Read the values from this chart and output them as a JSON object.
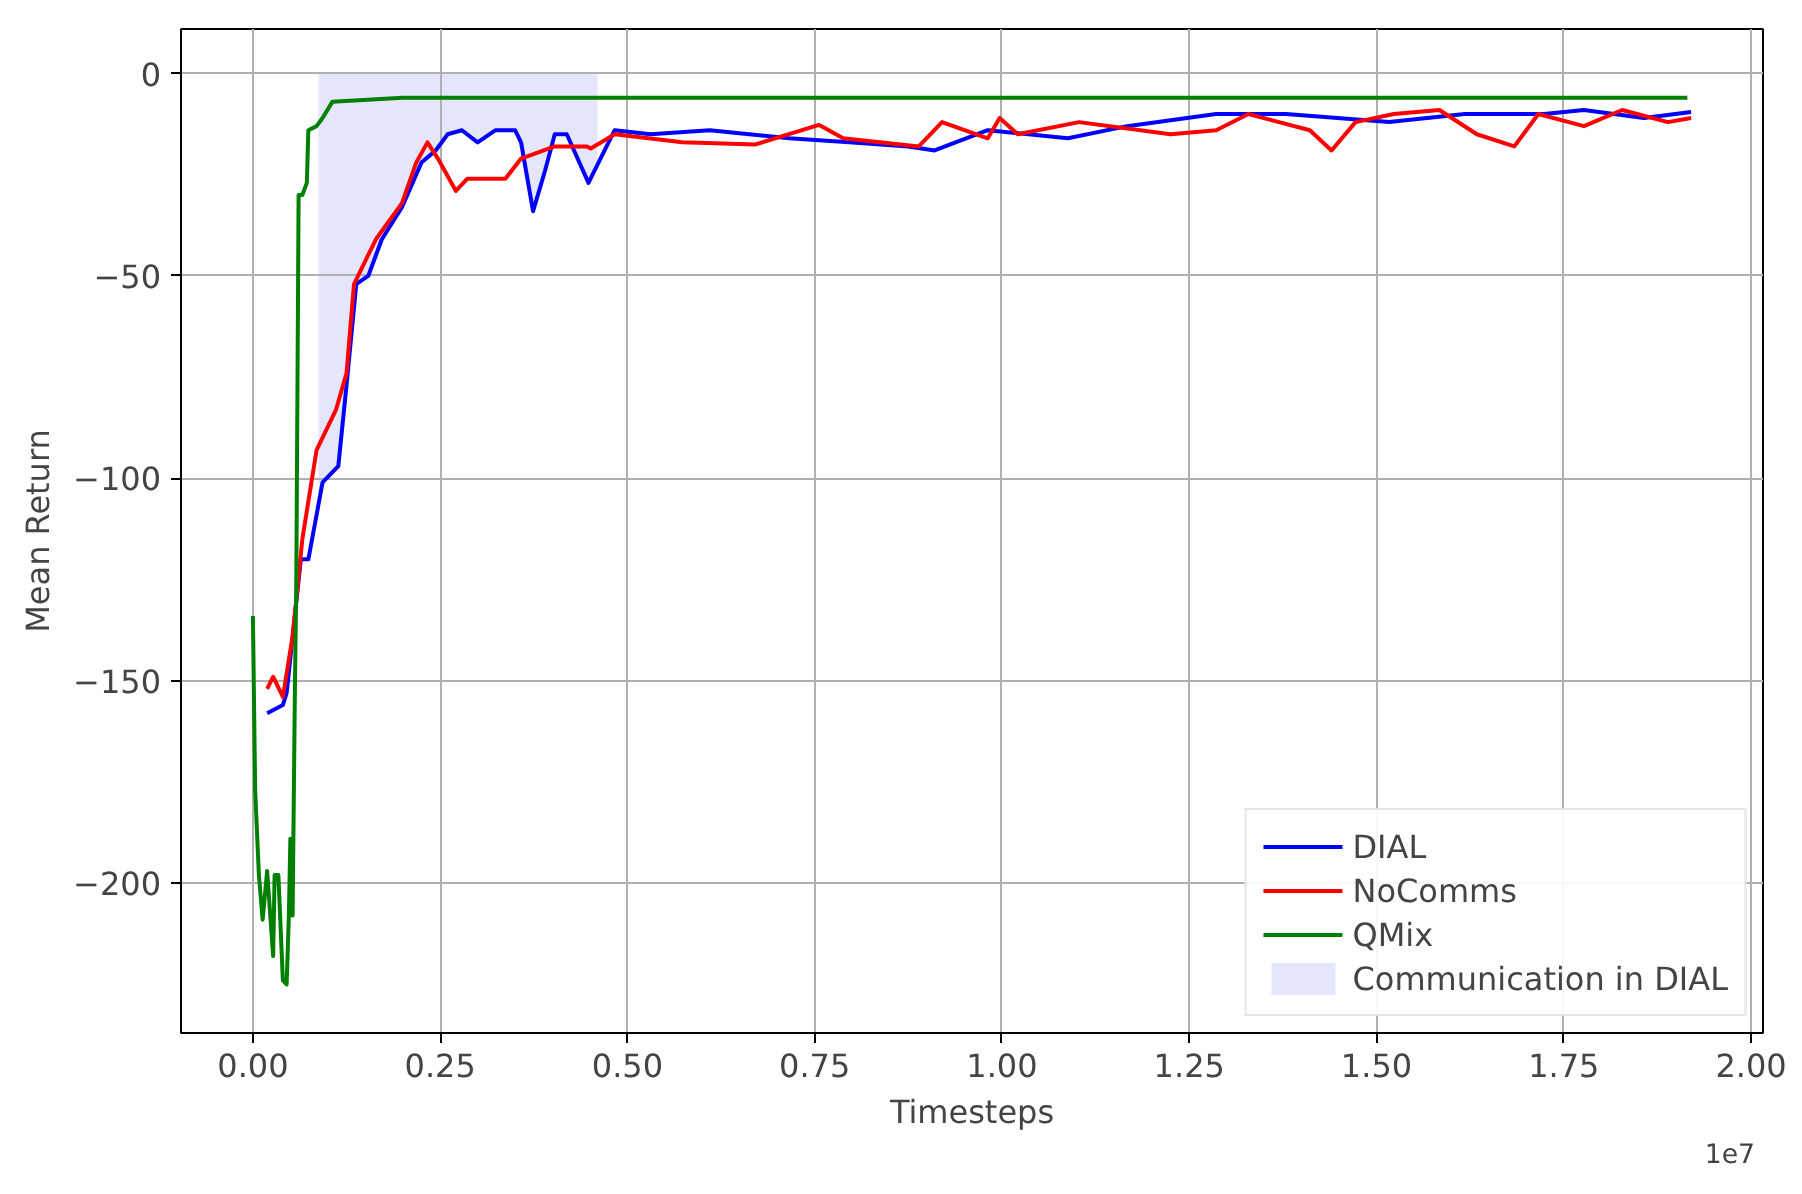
{
  "chart_data": {
    "type": "line",
    "xlabel": "Timesteps",
    "ylabel": "Mean Return",
    "xlim": [
      -0.096,
      2.016
    ],
    "ylim": [
      -237,
      11
    ],
    "xticks": [
      {
        "value": 0,
        "label": "0.00"
      },
      0.25,
      {
        "value": 0.5,
        "label": "0.50"
      },
      0.75,
      {
        "value": 1,
        "label": "1.00"
      },
      1.25,
      {
        "value": 1.5,
        "label": "1.50"
      },
      1.75,
      {
        "value": 2,
        "label": "2.00"
      }
    ],
    "yticks": [
      0,
      -50,
      -100,
      -150,
      -200
    ],
    "grid": true,
    "legend": "bottom right",
    "line_style": "solid",
    "marker": "none",
    "annotations": [
      "1e7"
    ],
    "series": [
      {
        "name": "Communication in DIAL",
        "type": "area",
        "color": "#e5e5fc",
        "x": [
          0.0875,
          0.093,
          0.114,
          0.125,
          0.138,
          0.154,
          0.172,
          0.199,
          0.225,
          0.244,
          0.26,
          0.279,
          0.3,
          0.324,
          0.35,
          0.358,
          0.374,
          0.39,
          0.403,
          0.419,
          0.448,
          0.46
        ],
        "values": [
          -106,
          -101,
          -97,
          -77,
          -52,
          -50,
          -41,
          -33,
          -22,
          -19,
          -15,
          -14,
          -17,
          -14,
          -14,
          -17,
          -34,
          -24,
          -15,
          -15,
          -27,
          -23
        ]
      },
      {
        "name": "DIAL",
        "color": "#0000ff",
        "x": [
          0.019,
          0.04,
          0.045,
          0.064,
          0.074,
          0.093,
          0.114,
          0.125,
          0.138,
          0.154,
          0.172,
          0.199,
          0.225,
          0.244,
          0.26,
          0.279,
          0.3,
          0.324,
          0.35,
          0.358,
          0.374,
          0.39,
          0.403,
          0.419,
          0.448,
          0.464,
          0.483,
          0.531,
          0.61,
          0.716,
          0.796,
          0.875,
          0.91,
          0.981,
          1.088,
          1.167,
          1.286,
          1.379,
          1.517,
          1.618,
          1.724,
          1.777,
          1.857,
          1.92
        ],
        "values": [
          -158,
          -156,
          -153,
          -120,
          -120,
          -101,
          -97,
          -77,
          -52,
          -50,
          -41,
          -33,
          -22,
          -19,
          -15,
          -14,
          -17,
          -14,
          -14,
          -17,
          -34,
          -24,
          -15,
          -15,
          -27,
          -21,
          -14,
          -15,
          -14,
          -16,
          -17,
          -18,
          -19,
          -14,
          -16,
          -13,
          -10,
          -10,
          -12,
          -10,
          -10,
          -9,
          -11,
          -9.5
        ]
      },
      {
        "name": "NoComms",
        "color": "#ff0000",
        "x": [
          0.019,
          0.027,
          0.04,
          0.053,
          0.066,
          0.085,
          0.111,
          0.125,
          0.135,
          0.164,
          0.199,
          0.218,
          0.233,
          0.247,
          0.271,
          0.286,
          0.324,
          0.337,
          0.358,
          0.403,
          0.446,
          0.451,
          0.483,
          0.573,
          0.671,
          0.756,
          0.788,
          0.889,
          0.92,
          0.981,
          0.997,
          1.021,
          1.103,
          1.225,
          1.286,
          1.329,
          1.411,
          1.44,
          1.472,
          1.523,
          1.584,
          1.634,
          1.684,
          1.716,
          1.777,
          1.828,
          1.889,
          1.92
        ],
        "values": [
          -152,
          -149,
          -154,
          -139,
          -115,
          -93,
          -83,
          -74,
          -52,
          -41,
          -32,
          -22,
          -17,
          -21,
          -29,
          -26,
          -26,
          -26,
          -21,
          -18,
          -18,
          -18.5,
          -15,
          -17,
          -17.5,
          -12.7,
          -16,
          -18,
          -12,
          -16,
          -11,
          -15,
          -12,
          -15,
          -14,
          -10,
          -14,
          -19,
          -12,
          -10,
          -9,
          -15,
          -18,
          -10,
          -13,
          -9,
          -12,
          -11
        ]
      },
      {
        "name": "QMix",
        "color": "#008000",
        "x": [
          0,
          0.003,
          0.008,
          0.013,
          0.019,
          0.027,
          0.029,
          0.034,
          0.04,
          0.045,
          0.048,
          0.05,
          0.053,
          0.056,
          0.058,
          0.061,
          0.066,
          0.072,
          0.074,
          0.085,
          0.093,
          0.106,
          0.2,
          0.5,
          0.8,
          1.1,
          1.4,
          1.7,
          1.915
        ],
        "values": [
          -134,
          -177,
          -198,
          -209,
          -197,
          -218,
          -198,
          -198,
          -224,
          -225,
          -208,
          -189,
          -208,
          -153,
          -124,
          -30,
          -30,
          -27,
          -14,
          -13,
          -11,
          -7,
          -6,
          -6,
          -6,
          -6,
          -6,
          -6,
          -6
        ]
      }
    ]
  }
}
